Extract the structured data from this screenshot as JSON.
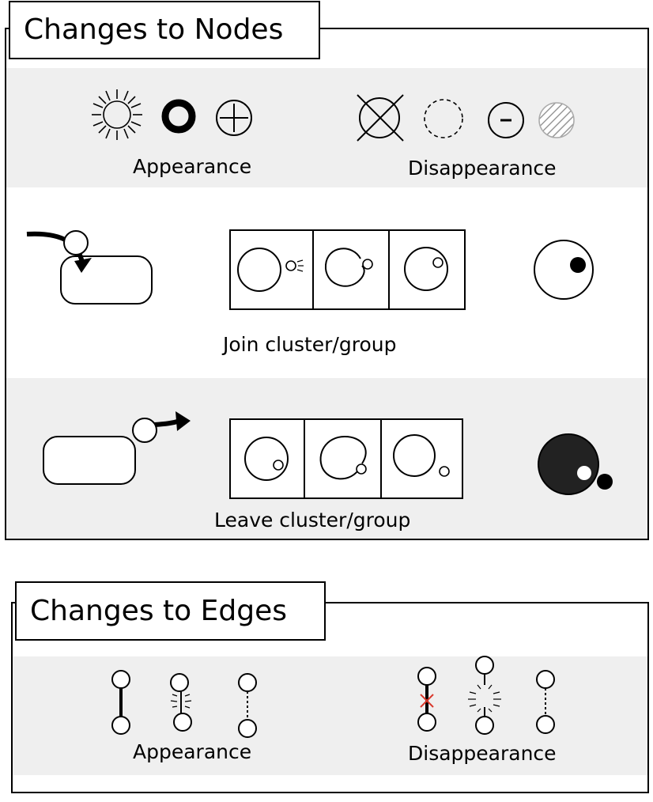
{
  "nodes_panel": {
    "title": "Changes to Nodes",
    "appearance_label": "Appearance",
    "disappearance_label": "Disappearance",
    "join_label": "Join cluster/group",
    "leave_label": "Leave cluster/group"
  },
  "edges_panel": {
    "title": "Changes to Edges",
    "appearance_label": "Appearance",
    "disappearance_label": "Disappearance"
  },
  "colors": {
    "band_gray": "#efefef",
    "stroke": "#000000",
    "hatch": "#999999",
    "cross_red": "#d9382c"
  }
}
